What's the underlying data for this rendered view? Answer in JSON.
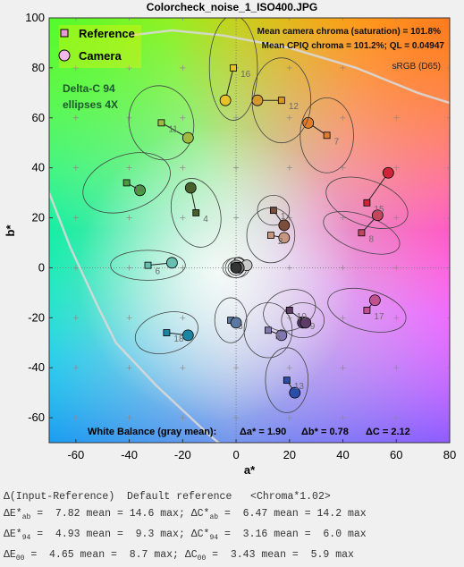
{
  "title": "Colorcheck_noise_1_ISO400.JPG",
  "chart_data": {
    "type": "scatter",
    "xlabel": "a*",
    "ylabel": "b*",
    "xlim": [
      -70,
      80
    ],
    "ylim": [
      -70,
      100
    ],
    "xticks": [
      "-60",
      "-40",
      "-20",
      "0",
      "20",
      "40",
      "60",
      "80"
    ],
    "yticks": [
      "-60",
      "-40",
      "-20",
      "0",
      "20",
      "40",
      "60",
      "80",
      "100"
    ],
    "legend": {
      "placement": "top-left",
      "entries": [
        "Reference",
        "Camera"
      ]
    },
    "annotations": {
      "mean_chroma": "Mean camera chroma (saturation) = 101.8%",
      "cpiq": "Mean CPIQ chroma = 101.2%;  QL = 0.04947",
      "colorspace": "sRGB (D65)",
      "delta_c_line1": "Delta-C 94",
      "delta_c_line2": "ellipses 4X",
      "wb_label": "White Balance (gray mean):",
      "wb_a": "Δa* = 1.90",
      "wb_b": "Δb* = 0.78",
      "wb_c": "ΔC = 2.12"
    },
    "patches": [
      {
        "id": "1",
        "ref": [
          14,
          23
        ],
        "cam": [
          18,
          17
        ],
        "ellipse": [
          6,
          6,
          0
        ],
        "color": "#7a4e3b"
      },
      {
        "id": "2",
        "ref": [
          13,
          13
        ],
        "cam": [
          18,
          12
        ],
        "ellipse": [
          9,
          11,
          0
        ],
        "color": "#c69680"
      },
      {
        "id": "3",
        "ref": [
          -2,
          -21
        ],
        "cam": [
          0,
          -22
        ],
        "ellipse": [
          6,
          9,
          0
        ],
        "color": "#5a78a2"
      },
      {
        "id": "4",
        "ref": [
          -15,
          22
        ],
        "cam": [
          -17,
          32
        ],
        "ellipse": [
          9,
          14,
          -15
        ],
        "color": "#47602c"
      },
      {
        "id": "5",
        "ref": [
          12,
          -25
        ],
        "cam": [
          17,
          -27
        ],
        "ellipse": [
          9,
          11,
          0
        ],
        "color": "#8178b2"
      },
      {
        "id": "6",
        "ref": [
          -33,
          1
        ],
        "cam": [
          -24,
          2
        ],
        "ellipse": [
          14,
          6,
          0
        ],
        "color": "#66bfb1"
      },
      {
        "id": "7",
        "ref": [
          34,
          53
        ],
        "cam": [
          27,
          58
        ],
        "ellipse": [
          10,
          15,
          0
        ],
        "color": "#e07d2c"
      },
      {
        "id": "8",
        "ref": [
          47,
          14
        ],
        "cam": [
          53,
          21
        ],
        "ellipse": [
          15,
          7,
          20
        ],
        "color": "#c0475e"
      },
      {
        "id": "9",
        "ref": [
          25,
          -21
        ],
        "cam": [
          25,
          -22
        ],
        "ellipse": [
          8,
          7,
          0
        ],
        "color": "#5a3f72"
      },
      {
        "id": "10",
        "ref": [
          20,
          -17
        ],
        "cam": [
          26,
          -22
        ],
        "ellipse": [
          10,
          8,
          -20
        ],
        "color": "#5e3a66"
      },
      {
        "id": "11",
        "ref": [
          -28,
          58
        ],
        "cam": [
          -18,
          52
        ],
        "ellipse": [
          12,
          15,
          -15
        ],
        "color": "#9fb941"
      },
      {
        "id": "12",
        "ref": [
          17,
          67
        ],
        "cam": [
          8,
          67
        ],
        "ellipse": [
          11,
          17,
          0
        ],
        "color": "#d4982b"
      },
      {
        "id": "13",
        "ref": [
          19,
          -45
        ],
        "cam": [
          22,
          -50
        ],
        "ellipse": [
          8,
          13,
          0
        ],
        "color": "#2b4fa8"
      },
      {
        "id": "14",
        "ref": [
          -41,
          34
        ],
        "cam": [
          -36,
          31
        ],
        "ellipse": [
          17,
          11,
          -20
        ],
        "color": "#4a9a3f"
      },
      {
        "id": "15",
        "ref": [
          49,
          26
        ],
        "cam": [
          57,
          38
        ],
        "ellipse": [
          16,
          9,
          20
        ],
        "color": "#d02438"
      },
      {
        "id": "16",
        "ref": [
          -1,
          80
        ],
        "cam": [
          -4,
          67
        ],
        "ellipse": [
          9,
          21,
          0
        ],
        "color": "#e6c228"
      },
      {
        "id": "17",
        "ref": [
          49,
          -17
        ],
        "cam": [
          52,
          -13
        ],
        "ellipse": [
          15,
          8,
          15
        ],
        "color": "#c1508f"
      },
      {
        "id": "18",
        "ref": [
          -26,
          -26
        ],
        "cam": [
          -18,
          -27
        ],
        "ellipse": [
          12,
          8,
          -15
        ],
        "color": "#1c85a2"
      },
      {
        "id": "",
        "ref": [
          0,
          0
        ],
        "cam": [
          1,
          2
        ],
        "ellipse": [
          5,
          4,
          0
        ],
        "color": "#f4f4f4"
      },
      {
        "id": "",
        "ref": [
          0,
          0
        ],
        "cam": [
          4,
          1
        ],
        "ellipse": [
          4,
          4,
          0
        ],
        "color": "#c9c9c9"
      },
      {
        "id": "",
        "ref": [
          0,
          0
        ],
        "cam": [
          0,
          1
        ],
        "ellipse": [
          3,
          3,
          0
        ],
        "color": "#a0a0a0"
      },
      {
        "id": "",
        "ref": [
          0,
          0
        ],
        "cam": [
          1,
          0
        ],
        "ellipse": [
          3,
          3,
          0
        ],
        "color": "#7a7a7a"
      },
      {
        "id": "",
        "ref": [
          0,
          0
        ],
        "cam": [
          0,
          0
        ],
        "ellipse": [
          2,
          2,
          0
        ],
        "color": "#555555"
      },
      {
        "id": "",
        "ref": [
          0,
          0
        ],
        "cam": [
          0,
          0
        ],
        "ellipse": [
          2,
          2,
          0
        ],
        "color": "#343434"
      }
    ]
  },
  "stats": {
    "header": "Δ(Input-Reference)  Default reference   <Chroma*1.02>",
    "row1": "ΔE*ab =  7.82 mean = 14.6 max; ΔC*ab =  6.47 mean = 14.2 max",
    "row2": "ΔE*94 =  4.93 mean =  9.3 max; ΔC*94 =  3.16 mean =  6.0 max",
    "row3": "ΔE00 =  4.65 mean =  8.7 max; ΔC00 =  3.43 mean =  5.9 max"
  }
}
